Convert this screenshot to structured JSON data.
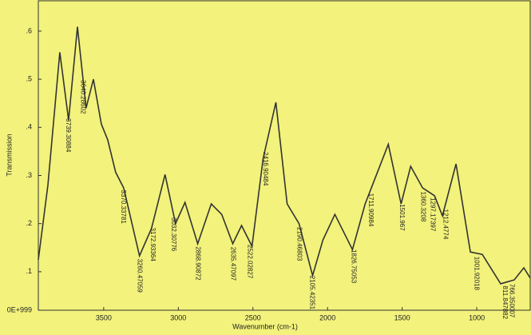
{
  "chart_data": {
    "type": "line",
    "xlabel": "Wavenumber (cm-1)",
    "ylabel": "Transmission",
    "color": "#333333",
    "xlim": [
      3938,
      642
    ],
    "ylim": [
      0.02,
      0.663
    ],
    "xticks": [
      3500,
      3000,
      2500,
      2000,
      1500,
      1000
    ],
    "yticks": [
      {
        "value": 0.02,
        "label": "0E+999"
      },
      {
        "value": 0.1,
        "label": ".1"
      },
      {
        "value": 0.2,
        "label": ".2"
      },
      {
        "value": 0.3,
        "label": ".3"
      },
      {
        "value": 0.4,
        "label": ".4"
      },
      {
        "value": 0.5,
        "label": ".5"
      },
      {
        "value": 0.6,
        "label": ".6"
      }
    ],
    "x": [
      3938,
      3874,
      3794,
      3735,
      3676,
      3618,
      3569,
      3516,
      3473,
      3420,
      3366,
      3260,
      3180,
      3089,
      3019,
      2955,
      2870,
      2779,
      2709,
      2635,
      2576,
      2506,
      2432,
      2346,
      2271,
      2191,
      2100,
      2031,
      1951,
      1833,
      1748,
      1593,
      1507,
      1443,
      1363,
      1283,
      1230,
      1139,
      1043,
      963,
      840,
      749,
      685,
      642
    ],
    "values": [
      0.125,
      0.28,
      0.556,
      0.415,
      0.609,
      0.44,
      0.5,
      0.407,
      0.374,
      0.307,
      0.274,
      0.133,
      0.19,
      0.302,
      0.2,
      0.244,
      0.158,
      0.241,
      0.219,
      0.158,
      0.196,
      0.153,
      0.335,
      0.452,
      0.241,
      0.2,
      0.092,
      0.166,
      0.219,
      0.146,
      0.241,
      0.365,
      0.241,
      0.319,
      0.274,
      0.258,
      0.216,
      0.324,
      0.141,
      0.136,
      0.075,
      0.083,
      0.108,
      0.087
    ],
    "annotations": [
      "3739.30884",
      "3640.28602",
      "3370.33781",
      "3260.47059",
      "3172.93364",
      "3032.30776",
      "2868.90872",
      "2635.47097",
      "2522.02827",
      "2416.90484",
      "2190.46803",
      "2105.42351",
      "1826.75053",
      "1711.90984",
      "1501.967",
      "1360.3208",
      "1297.17397",
      "1212.4774",
      "1001.92018",
      "811.847882",
      "766.350007"
    ]
  }
}
